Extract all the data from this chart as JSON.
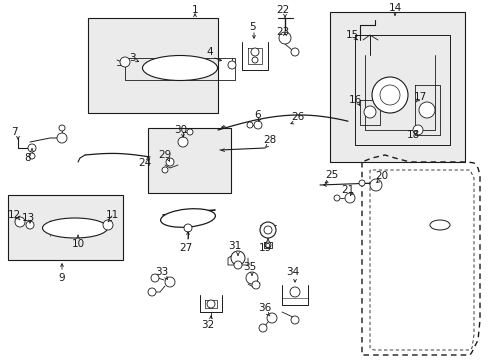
{
  "bg_color": "#ffffff",
  "line_color": "#1a1a1a",
  "box_fill": "#ebebeb",
  "fig_width": 4.89,
  "fig_height": 3.6,
  "dpi": 100,
  "font_size": 7.5
}
